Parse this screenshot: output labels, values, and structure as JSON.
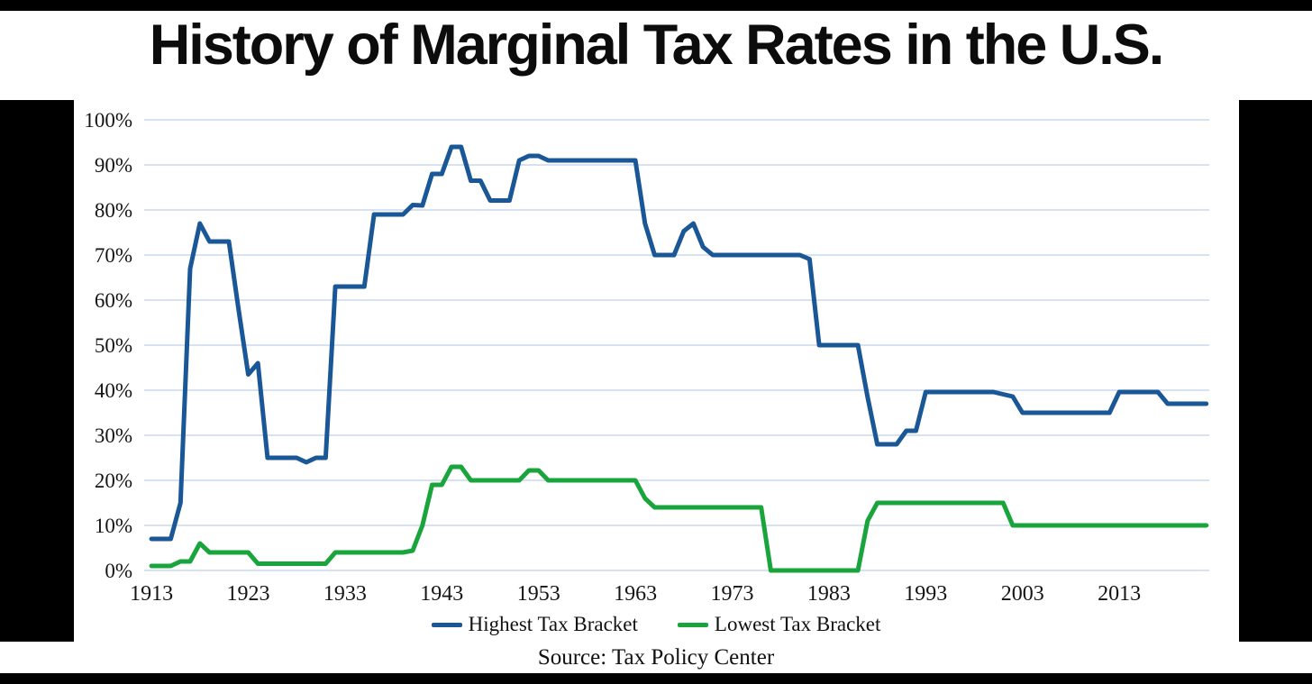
{
  "title": "History of Marginal Tax Rates in the U.S.",
  "source": "Source: Tax Policy Center",
  "colors": {
    "frame": "#000000",
    "background": "#ffffff",
    "gridline": "#c9d8ea",
    "highest_line": "#1a5796",
    "lowest_line": "#1aa53c",
    "text": "#141414"
  },
  "chart_data": {
    "type": "line",
    "title": "History of Marginal Tax Rates in the U.S.",
    "xlabel": "",
    "ylabel": "",
    "x_range": [
      1913,
      2022
    ],
    "ylim": [
      0,
      100
    ],
    "x_ticks": [
      1913,
      1923,
      1933,
      1943,
      1953,
      1963,
      1973,
      1983,
      1993,
      2003,
      2013
    ],
    "y_ticks": [
      0,
      10,
      20,
      30,
      40,
      50,
      60,
      70,
      80,
      90,
      100
    ],
    "y_tick_suffix": "%",
    "grid": "horizontal",
    "gridline_color": "#c9d8ea",
    "legend_position": "bottom",
    "series": [
      {
        "name": "Highest Tax Bracket",
        "color": "#1a5796",
        "note": "breakpoints = [year, rate%]; rate holds until next breakpoint",
        "breakpoints": [
          [
            1913,
            7
          ],
          [
            1916,
            15
          ],
          [
            1917,
            67
          ],
          [
            1918,
            77
          ],
          [
            1919,
            73
          ],
          [
            1922,
            58
          ],
          [
            1923,
            43.5
          ],
          [
            1924,
            46
          ],
          [
            1925,
            25
          ],
          [
            1929,
            24
          ],
          [
            1930,
            25
          ],
          [
            1932,
            63
          ],
          [
            1936,
            79
          ],
          [
            1940,
            81.1
          ],
          [
            1941,
            81
          ],
          [
            1942,
            88
          ],
          [
            1944,
            94
          ],
          [
            1946,
            86.5
          ],
          [
            1948,
            82.1
          ],
          [
            1951,
            91
          ],
          [
            1952,
            92
          ],
          [
            1954,
            91
          ],
          [
            1964,
            77
          ],
          [
            1965,
            70
          ],
          [
            1968,
            75.3
          ],
          [
            1969,
            77
          ],
          [
            1970,
            71.8
          ],
          [
            1971,
            70
          ],
          [
            1981,
            69.1
          ],
          [
            1982,
            50
          ],
          [
            1987,
            38.5
          ],
          [
            1988,
            28
          ],
          [
            1991,
            31
          ],
          [
            1993,
            39.6
          ],
          [
            2001,
            39.1
          ],
          [
            2002,
            38.6
          ],
          [
            2003,
            35
          ],
          [
            2013,
            39.6
          ],
          [
            2018,
            37
          ]
        ]
      },
      {
        "name": "Lowest Tax Bracket",
        "color": "#1aa53c",
        "note": "breakpoints = [year, rate%]; rate holds until next breakpoint",
        "breakpoints": [
          [
            1913,
            1
          ],
          [
            1916,
            2
          ],
          [
            1918,
            6
          ],
          [
            1919,
            4
          ],
          [
            1924,
            1.5
          ],
          [
            1932,
            4
          ],
          [
            1940,
            4.4
          ],
          [
            1941,
            10
          ],
          [
            1942,
            19
          ],
          [
            1944,
            23
          ],
          [
            1946,
            20
          ],
          [
            1952,
            22.2
          ],
          [
            1954,
            20
          ],
          [
            1964,
            16
          ],
          [
            1965,
            14
          ],
          [
            1977,
            0
          ],
          [
            1987,
            11
          ],
          [
            1988,
            15
          ],
          [
            2002,
            10
          ]
        ]
      }
    ],
    "source": "Source: Tax Policy Center"
  }
}
